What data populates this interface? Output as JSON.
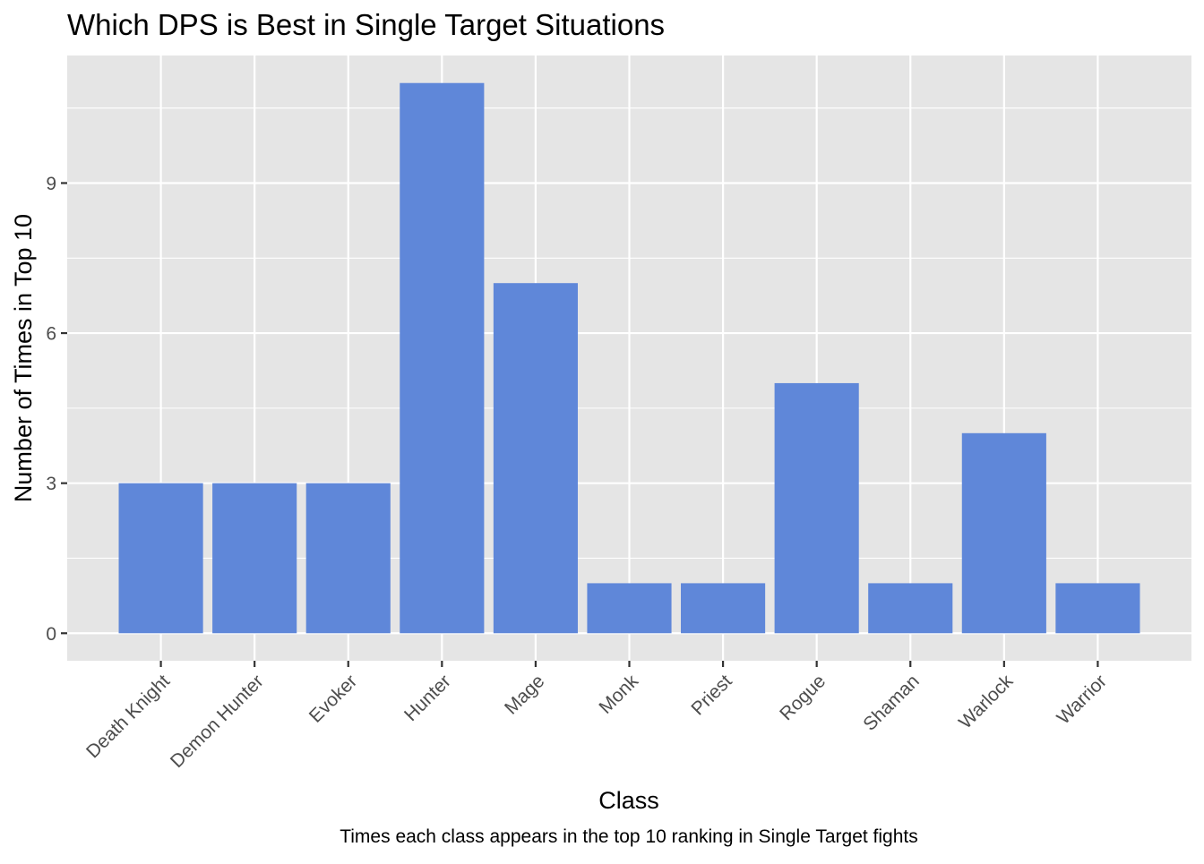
{
  "chart_data": {
    "type": "bar",
    "title": "Which DPS is Best in Single Target Situations",
    "xlabel": "Class",
    "ylabel": "Number of Times in Top 10",
    "caption": "Times each class appears in the top 10 ranking in Single Target fights",
    "categories": [
      "Death Knight",
      "Demon Hunter",
      "Evoker",
      "Hunter",
      "Mage",
      "Monk",
      "Priest",
      "Rogue",
      "Shaman",
      "Warlock",
      "Warrior"
    ],
    "values": [
      3,
      3,
      3,
      11,
      7,
      1,
      1,
      5,
      1,
      4,
      1
    ],
    "ylim": [
      -0.55,
      11.55
    ],
    "yticks": [
      0,
      3,
      6,
      9
    ],
    "ytick_labels": [
      "0",
      "3",
      "6",
      "9"
    ],
    "grid": true,
    "colors": {
      "bar": "#5f87d9",
      "panel": "#e5e5e5",
      "grid": "#ffffff",
      "tick_text": "#4d4d4d",
      "tick_mark": "#333333"
    }
  }
}
